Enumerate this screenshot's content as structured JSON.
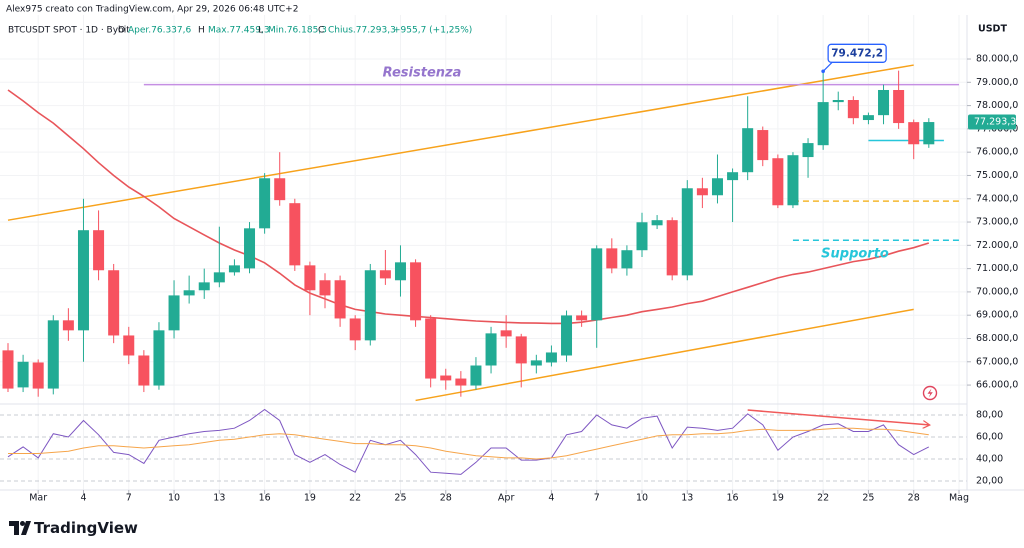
{
  "header": {
    "author_line": "Alex975 creato con TradingView.com, Apr 29, 2026 06:48 UTC+2",
    "symbol": "BTCUSDT SPOT · 1D · Bybit",
    "ohlc": [
      {
        "key": "O",
        "text": "Aper.76.337,6"
      },
      {
        "key": "H",
        "text": "Max.77.459,3"
      },
      {
        "key": "L",
        "text": "Min.76.185,3"
      },
      {
        "key": "C",
        "text": "Chius.77.293,3"
      }
    ],
    "change": "+955,7 (+1,25%)"
  },
  "chart_data": [
    {
      "type": "candlestick",
      "unit": "USDT",
      "x": [
        "2026-02-27",
        "2026-02-28",
        "2026-03-01",
        "2026-03-02",
        "2026-03-03",
        "2026-03-04",
        "2026-03-05",
        "2026-03-06",
        "2026-03-07",
        "2026-03-08",
        "2026-03-09",
        "2026-03-10",
        "2026-03-11",
        "2026-03-12",
        "2026-03-13",
        "2026-03-14",
        "2026-03-15",
        "2026-03-16",
        "2026-03-17",
        "2026-03-18",
        "2026-03-19",
        "2026-03-20",
        "2026-03-21",
        "2026-03-22",
        "2026-03-23",
        "2026-03-24",
        "2026-03-25",
        "2026-03-26",
        "2026-03-27",
        "2026-03-28",
        "2026-03-29",
        "2026-03-30",
        "2026-03-31",
        "2026-04-01",
        "2026-04-02",
        "2026-04-03",
        "2026-04-04",
        "2026-04-05",
        "2026-04-06",
        "2026-04-07",
        "2026-04-08",
        "2026-04-09",
        "2026-04-10",
        "2026-04-11",
        "2026-04-12",
        "2026-04-13",
        "2026-04-14",
        "2026-04-15",
        "2026-04-16",
        "2026-04-17",
        "2026-04-18",
        "2026-04-19",
        "2026-04-20",
        "2026-04-21",
        "2026-04-22",
        "2026-04-23",
        "2026-04-24",
        "2026-04-25",
        "2026-04-26",
        "2026-04-27",
        "2026-04-28",
        "2026-04-29"
      ],
      "open": [
        67490,
        65900,
        66970,
        65850,
        68780,
        68350,
        72650,
        70930,
        68130,
        67270,
        65980,
        68350,
        69850,
        70070,
        70410,
        70840,
        71010,
        72730,
        74880,
        73810,
        71140,
        70500,
        70500,
        68860,
        67920,
        70930,
        70500,
        71270,
        68860,
        66410,
        66280,
        65980,
        66840,
        68350,
        68090,
        66840,
        66970,
        67270,
        68990,
        68780,
        71870,
        71010,
        71790,
        72860,
        73080,
        70710,
        74450,
        74150,
        74800,
        75140,
        76950,
        75740,
        73720,
        75790,
        76300,
        78150,
        78240,
        77380,
        77590,
        78670,
        77290,
        76337.6
      ],
      "high": [
        67800,
        67300,
        67100,
        69000,
        69300,
        74000,
        73500,
        71200,
        68500,
        67500,
        68700,
        70500,
        70700,
        71000,
        72800,
        71400,
        73000,
        75100,
        76000,
        74000,
        71300,
        70800,
        70700,
        69000,
        71200,
        71800,
        72000,
        71400,
        69000,
        66700,
        66600,
        67200,
        68500,
        69000,
        68200,
        67300,
        67700,
        69200,
        69200,
        72000,
        72300,
        72000,
        73400,
        73300,
        73200,
        74800,
        74900,
        75900,
        75300,
        78400,
        77100,
        75900,
        76000,
        76600,
        79472.2,
        78600,
        78400,
        77700,
        78900,
        79500,
        77400,
        77459.3
      ],
      "low": [
        65700,
        65700,
        65500,
        65600,
        67900,
        67000,
        70500,
        67800,
        66900,
        65700,
        65800,
        68000,
        69500,
        69700,
        70200,
        70700,
        70800,
        72500,
        73700,
        70900,
        69000,
        69300,
        68500,
        67500,
        67700,
        70300,
        69800,
        68500,
        65900,
        65800,
        65500,
        65800,
        66500,
        67600,
        65900,
        66500,
        66800,
        67000,
        68500,
        67600,
        70800,
        70700,
        71500,
        72700,
        70500,
        70500,
        73600,
        73800,
        73000,
        74800,
        75400,
        73600,
        73600,
        74900,
        76100,
        77800,
        77200,
        77200,
        77200,
        77000,
        75700,
        76185.3
      ],
      "close": [
        65850,
        67000,
        65850,
        68780,
        68350,
        72650,
        70930,
        68130,
        67270,
        65980,
        68350,
        69850,
        70070,
        70410,
        70840,
        71140,
        72730,
        74880,
        73940,
        71140,
        70070,
        69850,
        68860,
        67920,
        70930,
        70580,
        71270,
        68780,
        66280,
        66200,
        65980,
        66840,
        68220,
        68090,
        66930,
        67060,
        67400,
        68990,
        68780,
        71870,
        71010,
        71790,
        72990,
        73080,
        70710,
        74450,
        74150,
        74880,
        75140,
        77030,
        75660,
        73720,
        75870,
        76390,
        78150,
        78240,
        77460,
        77590,
        78670,
        77250,
        76340,
        77293.3
      ],
      "up_color": "#22ab94",
      "down_color": "#f7525f",
      "ma": {
        "color": "#e8555a",
        "values": [
          78670,
          78200,
          77700,
          77250,
          76700,
          76150,
          75550,
          75000,
          74500,
          74100,
          73650,
          73150,
          72800,
          72450,
          72100,
          71800,
          71550,
          71250,
          70800,
          70300,
          69950,
          69700,
          69450,
          69250,
          69150,
          69050,
          69000,
          68950,
          68900,
          68850,
          68800,
          68750,
          68720,
          68690,
          68670,
          68660,
          68650,
          68650,
          68700,
          68800,
          68900,
          69000,
          69150,
          69250,
          69350,
          69500,
          69600,
          69800,
          70000,
          70200,
          70400,
          70600,
          70750,
          70850,
          71000,
          71150,
          71300,
          71400,
          71550,
          71750,
          71900,
          72100
        ]
      },
      "xlim": [
        "2026-02-27",
        "2026-05-01"
      ],
      "ylim": [
        65230,
        81890
      ],
      "yticks": [
        {
          "value": 66000,
          "label": "66.000,0"
        },
        {
          "value": 67000,
          "label": "67.000,0"
        },
        {
          "value": 68000,
          "label": "68.000,0"
        },
        {
          "value": 69000,
          "label": "69.000,0"
        },
        {
          "value": 70000,
          "label": "70.000,0"
        },
        {
          "value": 71000,
          "label": "71.000,0"
        },
        {
          "value": 72000,
          "label": "72.000,0"
        },
        {
          "value": 73000,
          "label": "73.000,0"
        },
        {
          "value": 74000,
          "label": "74.000,0"
        },
        {
          "value": 75000,
          "label": "75.000,0"
        },
        {
          "value": 76000,
          "label": "76.000,0"
        },
        {
          "value": 77000,
          "label": "77.000,0"
        },
        {
          "value": 78000,
          "label": "78.000,0"
        },
        {
          "value": 79000,
          "label": "79.000,0"
        },
        {
          "value": 80000,
          "label": "80.000,0"
        }
      ],
      "xticks": [
        {
          "value": "2026-03-01",
          "label": "Mar"
        },
        {
          "value": "2026-03-04",
          "label": "4"
        },
        {
          "value": "2026-03-07",
          "label": "7"
        },
        {
          "value": "2026-03-10",
          "label": "10"
        },
        {
          "value": "2026-03-13",
          "label": "13"
        },
        {
          "value": "2026-03-16",
          "label": "16"
        },
        {
          "value": "2026-03-19",
          "label": "19"
        },
        {
          "value": "2026-03-22",
          "label": "22"
        },
        {
          "value": "2026-03-25",
          "label": "25"
        },
        {
          "value": "2026-03-28",
          "label": "28"
        },
        {
          "value": "2026-04-01",
          "label": "Apr"
        },
        {
          "value": "2026-04-04",
          "label": "4"
        },
        {
          "value": "2026-04-07",
          "label": "7"
        },
        {
          "value": "2026-04-10",
          "label": "10"
        },
        {
          "value": "2026-04-13",
          "label": "13"
        },
        {
          "value": "2026-04-16",
          "label": "16"
        },
        {
          "value": "2026-04-19",
          "label": "19"
        },
        {
          "value": "2026-04-22",
          "label": "22"
        },
        {
          "value": "2026-04-25",
          "label": "25"
        },
        {
          "value": "2026-04-28",
          "label": "28"
        },
        {
          "value": "2026-05-01",
          "label": "Mag"
        }
      ],
      "grid": true,
      "trendlines": [
        {
          "points": [
            [
              "2026-02-27",
              73080
            ],
            [
              "2026-04-28",
              79740
            ]
          ],
          "color": "#f7a21b",
          "style": "solid"
        },
        {
          "points": [
            [
              "2026-03-26",
              65340
            ],
            [
              "2026-04-28",
              69250
            ]
          ],
          "color": "#f7a21b",
          "style": "solid"
        },
        {
          "points": [
            [
              "2026-03-08",
              78900
            ],
            [
              "2026-05-01",
              78900
            ]
          ],
          "color": "#c58fe3",
          "style": "solid"
        },
        {
          "points": [
            [
              "2026-04-25",
              76500
            ],
            [
              "2026-04-30",
              76500
            ]
          ],
          "color": "#26c6da",
          "style": "solid"
        },
        {
          "points": [
            [
              "2026-04-20",
              73900
            ],
            [
              "2026-05-01",
              73900
            ]
          ],
          "color": "#f5b82e",
          "style": "dashed"
        },
        {
          "points": [
            [
              "2026-04-20",
              72220
            ],
            [
              "2026-05-01",
              72220
            ]
          ],
          "color": "#26c6da",
          "style": "dashed"
        }
      ],
      "annotations": [
        {
          "text": "Resistenza",
          "color": "#9575cd"
        },
        {
          "text": "Supporto",
          "color": "#26c6da"
        }
      ],
      "callout": {
        "x": "2026-04-22",
        "value": 79472.2,
        "label": "79.472,2",
        "color": "#2962ff"
      },
      "last_price": {
        "value": 77293.3,
        "label": "77.293,3",
        "color": "#22ab94"
      }
    },
    {
      "type": "line",
      "series": [
        {
          "color": "#7e57c2",
          "values": [
            42,
            51,
            41,
            63,
            60,
            75,
            62,
            46,
            44,
            36,
            57,
            60,
            63,
            65,
            66,
            68,
            75,
            85,
            75,
            44,
            37,
            44,
            35,
            28,
            57,
            53,
            57,
            44,
            28,
            27,
            26,
            37,
            50,
            50,
            39,
            39,
            41,
            62,
            65,
            80,
            71,
            68,
            77,
            79,
            50,
            69,
            68,
            66,
            68,
            81,
            71,
            48,
            60,
            65,
            71,
            72,
            65,
            65,
            71,
            53,
            44,
            51
          ]
        },
        {
          "color": "#f6a54a",
          "values": [
            45,
            45,
            45,
            46,
            47,
            50,
            52,
            52,
            51,
            50,
            51,
            52,
            53,
            55,
            57,
            58,
            60,
            62,
            63,
            62,
            60,
            58,
            56,
            54,
            54,
            53,
            53,
            52,
            50,
            47,
            45,
            43,
            42,
            41,
            41,
            40,
            41,
            43,
            46,
            49,
            52,
            55,
            58,
            61,
            62,
            62,
            63,
            63,
            64,
            66,
            67,
            66,
            66,
            66,
            67,
            68,
            68,
            67,
            67,
            66,
            64,
            62
          ]
        }
      ],
      "ylim": [
        11.8,
        89.1
      ],
      "yticks": [
        {
          "value": 20,
          "label": "20,00"
        },
        {
          "value": 40,
          "label": "40,00"
        },
        {
          "value": 60,
          "label": "60,00"
        },
        {
          "value": 80,
          "label": "80,00"
        }
      ],
      "grid": "dashed",
      "trendlines": [
        {
          "points": [
            [
              "2026-04-17",
              84.5
            ],
            [
              "2026-04-29",
              71
            ]
          ],
          "color": "#f05a5a",
          "style": "arrow"
        }
      ]
    }
  ],
  "footer": {
    "brand": "TradingView"
  }
}
